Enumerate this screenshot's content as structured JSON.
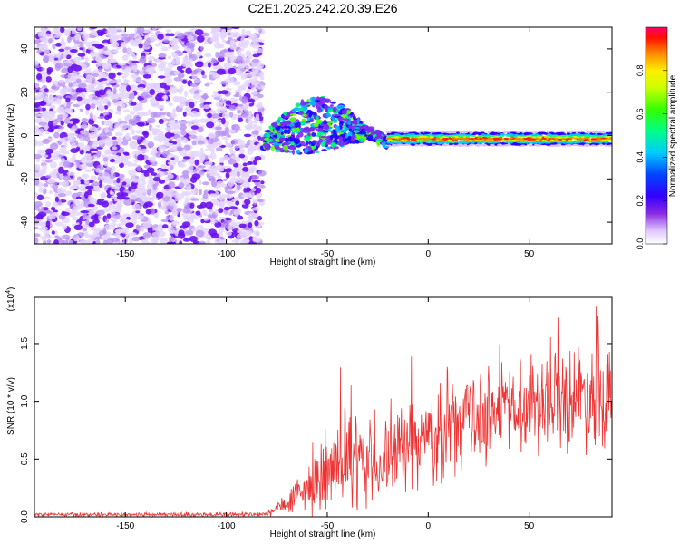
{
  "title": "C2E1.2025.242.20.39.E26",
  "chart_data": [
    {
      "type": "heatmap",
      "xlabel": "Height of straight line (km)",
      "ylabel": "Frequency (Hz)",
      "xlim": [
        -195,
        91
      ],
      "ylim": [
        -50,
        50
      ],
      "xticks": [
        -150,
        -100,
        -50,
        0,
        50
      ],
      "yticks": [
        -40,
        -20,
        0,
        20,
        40
      ],
      "colorbar": {
        "label": "Normalized spectral amplitude",
        "range": [
          0,
          1
        ],
        "ticks": [
          "0.0",
          "0.2",
          "0.4",
          "0.6",
          "0.8"
        ],
        "colors": [
          "#ffffff",
          "#e8d0ff",
          "#8a2be2",
          "#4400ff",
          "#0000ff",
          "#00ccff",
          "#00ff88",
          "#44ff00",
          "#ffff00",
          "#ff8800",
          "#ff0000",
          "#ff0066"
        ]
      },
      "regions": [
        {
          "x": [
            -195,
            -82
          ],
          "freq": [
            -50,
            50
          ],
          "amplitude": "noise 0.0-0.2"
        },
        {
          "x": [
            -82,
            -20
          ],
          "freq": [
            -10,
            22
          ],
          "amplitude": "mixed 0.1-0.7"
        },
        {
          "x": [
            -20,
            91
          ],
          "freq": [
            -3,
            0
          ],
          "amplitude": "ridge 0.5-1.0"
        }
      ]
    },
    {
      "type": "line",
      "xlabel": "Height of straight line (km)",
      "ylabel": "SNR (10 * v/v)",
      "yscale_note": "(x10",
      "yscale_exp": "4",
      "yscale_close": ")",
      "xlim": [
        -195,
        91
      ],
      "ylim": [
        0,
        1.9
      ],
      "xticks": [
        -150,
        -100,
        -50,
        0,
        50
      ],
      "yticks": [
        "0.0",
        "0.5",
        "1.0",
        "1.5"
      ],
      "series_color": "#ee3333",
      "envelope": [
        {
          "x": -195,
          "base": 0.02,
          "amp": 0.02
        },
        {
          "x": -80,
          "base": 0.02,
          "amp": 0.03
        },
        {
          "x": -70,
          "base": 0.12,
          "amp": 0.15
        },
        {
          "x": -55,
          "base": 0.3,
          "amp": 0.3
        },
        {
          "x": -40,
          "base": 0.45,
          "amp": 0.55
        },
        {
          "x": -25,
          "base": 0.45,
          "amp": 0.4
        },
        {
          "x": -10,
          "base": 0.6,
          "amp": 0.45
        },
        {
          "x": 10,
          "base": 0.75,
          "amp": 0.5
        },
        {
          "x": 30,
          "base": 0.9,
          "amp": 0.5
        },
        {
          "x": 50,
          "base": 1.0,
          "amp": 0.5
        },
        {
          "x": 70,
          "base": 1.05,
          "amp": 0.55
        },
        {
          "x": 91,
          "base": 1.1,
          "amp": 0.6
        }
      ]
    }
  ]
}
